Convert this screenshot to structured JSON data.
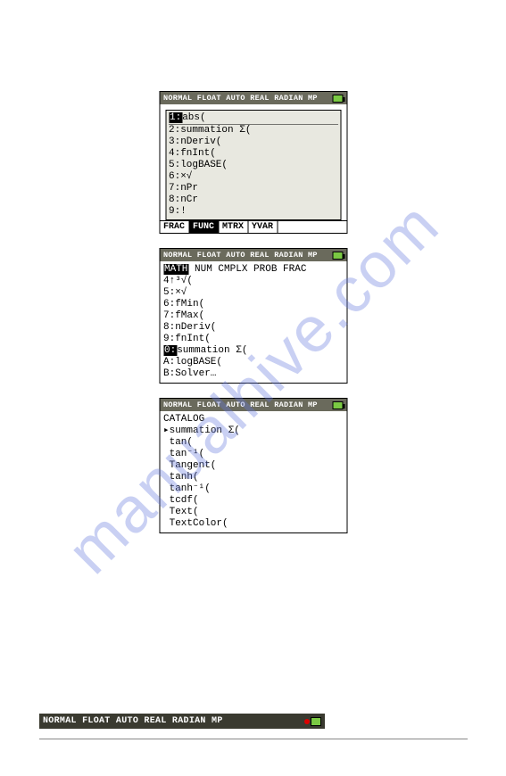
{
  "watermark": "manualhive.com",
  "status_text": "NORMAL FLOAT AUTO REAL RADIAN MP",
  "screen1": {
    "menu": {
      "r1_sel": "1:",
      "r1_rest": "abs(",
      "r2": "2:summation Σ(",
      "r3": "3:nDeriv(",
      "r4": "4:fnInt(",
      "r5": "5:logBASE(",
      "r6": "6:×√",
      "r7": "7:nPr",
      "r8": "8:nCr",
      "r9": "9:!"
    },
    "tabs": {
      "t1": "FRAC",
      "t2": "FUNC",
      "t3": "MTRX",
      "t4": "YVAR"
    }
  },
  "screen2": {
    "header_sel": "MATH",
    "header_rest": " NUM CMPLX PROB FRAC",
    "r1": "4↑³√(",
    "r2": "5:×√",
    "r3": "6:fMin(",
    "r4": "7:fMax(",
    "r5": "8:nDeriv(",
    "r6": "9:fnInt(",
    "r7_sel": "0:",
    "r7_rest": "summation Σ(",
    "r8": "A:logBASE(",
    "r9": "B:Solver…"
  },
  "screen3": {
    "title": "CATALOG",
    "cursor": "▸",
    "r1": "summation Σ(",
    "r2": " tan(",
    "r3": " tan⁻¹(",
    "r4": " Tangent(",
    "r5": " tanh(",
    "r6": " tanh⁻¹(",
    "r7": " tcdf(",
    "r8": " Text(",
    "r9": " TextColor("
  },
  "colors": {
    "status_bg": "#6a6a5c",
    "battery_fill": "#7ac943",
    "watermark": "rgba(100,120,220,0.35)"
  }
}
